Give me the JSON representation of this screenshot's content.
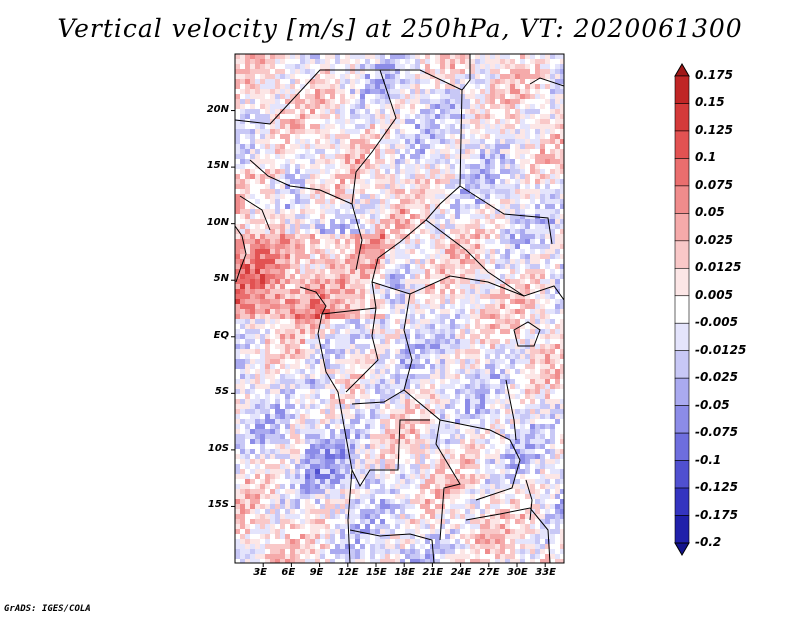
{
  "title": "Vertical velocity [m/s] at 250hPa, VT: 2020061300",
  "footer": "GrADS: IGES/COLA",
  "map": {
    "region": "Central Africa",
    "lon_range": [
      0,
      35
    ],
    "lat_range": [
      -20,
      25
    ],
    "lat_labels": [
      "20N",
      "15N",
      "10N",
      "5N",
      "EQ",
      "5S",
      "10S",
      "15S"
    ],
    "lon_labels": [
      "3E",
      "6E",
      "9E",
      "12E",
      "15E",
      "18E",
      "21E",
      "24E",
      "27E",
      "30E",
      "33E"
    ]
  },
  "colorbar": {
    "labels": [
      "0.175",
      "0.15",
      "0.125",
      "0.1",
      "0.075",
      "0.05",
      "0.025",
      "0.0125",
      "0.005",
      "-0.005",
      "-0.0125",
      "-0.025",
      "-0.05",
      "-0.075",
      "-0.1",
      "-0.125",
      "-0.175",
      "-0.2"
    ],
    "colors": [
      "#a01818",
      "#c02626",
      "#d43a3a",
      "#e25252",
      "#ea6e6e",
      "#f08c8c",
      "#f5aaaa",
      "#f9c8c8",
      "#fce6e6",
      "#ffffff",
      "#e4e4fc",
      "#c8c8f6",
      "#aaaaf0",
      "#8c8ce8",
      "#6e6ede",
      "#5050d0",
      "#3434c0",
      "#2020aa",
      "#14148c"
    ]
  }
}
